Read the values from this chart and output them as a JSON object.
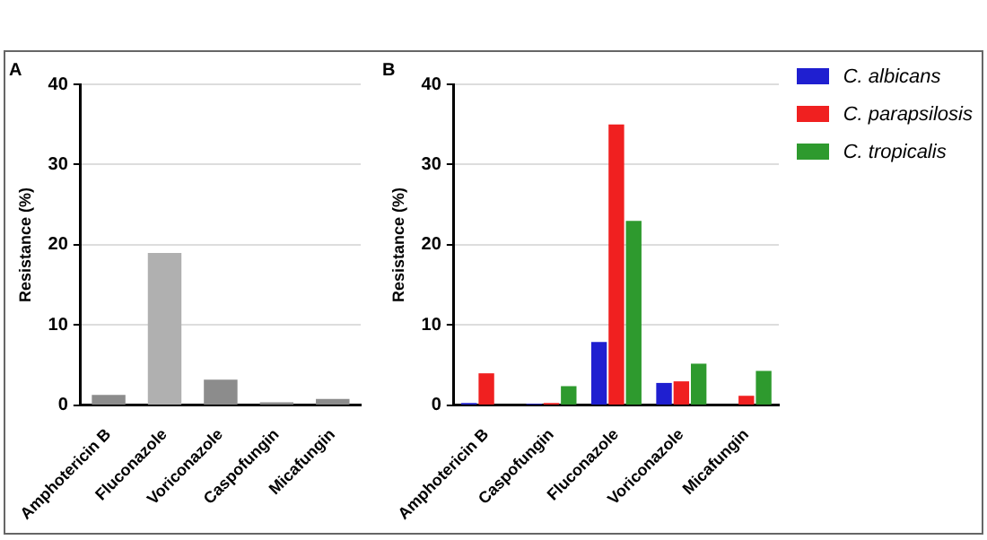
{
  "chart_data": [
    {
      "type": "bar",
      "title": "A",
      "ylabel": "Resistance (%)",
      "categories": [
        "Amphotericin B",
        "Fluconazole",
        "Voriconazole",
        "Caspofungin",
        "Micafungin"
      ],
      "values": [
        1.3,
        19,
        3.2,
        0.4,
        0.8
      ],
      "colors": [
        "#8c8c8c",
        "#b0b0b0",
        "#8c8c8c",
        "#8c8c8c",
        "#8c8c8c"
      ],
      "ylim": [
        0,
        40
      ],
      "yticks": [
        0,
        10,
        20,
        30,
        40
      ],
      "grid": "y",
      "legend": false
    },
    {
      "type": "bar",
      "title": "B",
      "ylabel": "Resistance (%)",
      "categories": [
        "Amphotericin B",
        "Caspofungin",
        "Fluconazole",
        "Voriconazole",
        "Micafungin"
      ],
      "series": [
        {
          "name": "C. albicans",
          "color": "#1f1fd0",
          "values": [
            0.3,
            0.2,
            7.9,
            2.8,
            0
          ]
        },
        {
          "name": "C. parapsilosis",
          "color": "#f02020",
          "values": [
            4.0,
            0.3,
            35,
            3.0,
            1.2
          ]
        },
        {
          "name": "C. tropicalis",
          "color": "#2e9a2e",
          "values": [
            0,
            2.4,
            23,
            5.2,
            4.3
          ]
        }
      ],
      "ylim": [
        0,
        40
      ],
      "yticks": [
        0,
        10,
        20,
        30,
        40
      ],
      "grid": "y",
      "legend": "top right"
    }
  ]
}
